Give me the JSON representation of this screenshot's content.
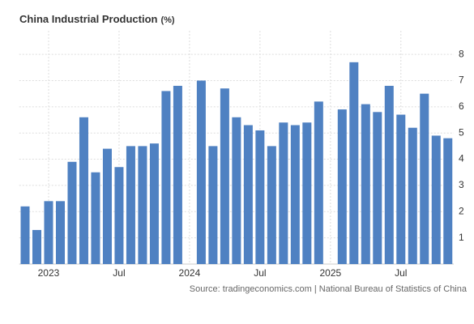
{
  "chart_data": {
    "type": "bar",
    "title": "China Industrial Production",
    "title_unit": "(%)",
    "source": "Source: tradingeconomics.com | National Bureau of Statistics of China",
    "categories": [
      null,
      null,
      "2023",
      null,
      null,
      null,
      null,
      null,
      "Jul",
      null,
      null,
      null,
      null,
      null,
      "2024",
      null,
      null,
      null,
      null,
      null,
      "Jul",
      null,
      null,
      null,
      null,
      null,
      "2025",
      null,
      null,
      null,
      null,
      null,
      "Jul",
      null,
      null,
      null,
      null
    ],
    "values": [
      2.2,
      1.3,
      2.4,
      2.4,
      3.9,
      5.6,
      3.5,
      4.4,
      3.7,
      4.5,
      4.5,
      4.6,
      6.6,
      6.8,
      null,
      7.0,
      4.5,
      6.7,
      5.6,
      5.3,
      5.1,
      4.5,
      5.4,
      5.3,
      5.4,
      6.2,
      null,
      5.9,
      7.7,
      6.1,
      5.8,
      6.8,
      5.7,
      5.2,
      6.5,
      4.9,
      4.8
    ],
    "color": "#4f81c2",
    "ylim": [
      0,
      8.9
    ],
    "yticks": [
      1,
      2,
      3,
      4,
      5,
      6,
      7,
      8
    ],
    "grid": true
  }
}
